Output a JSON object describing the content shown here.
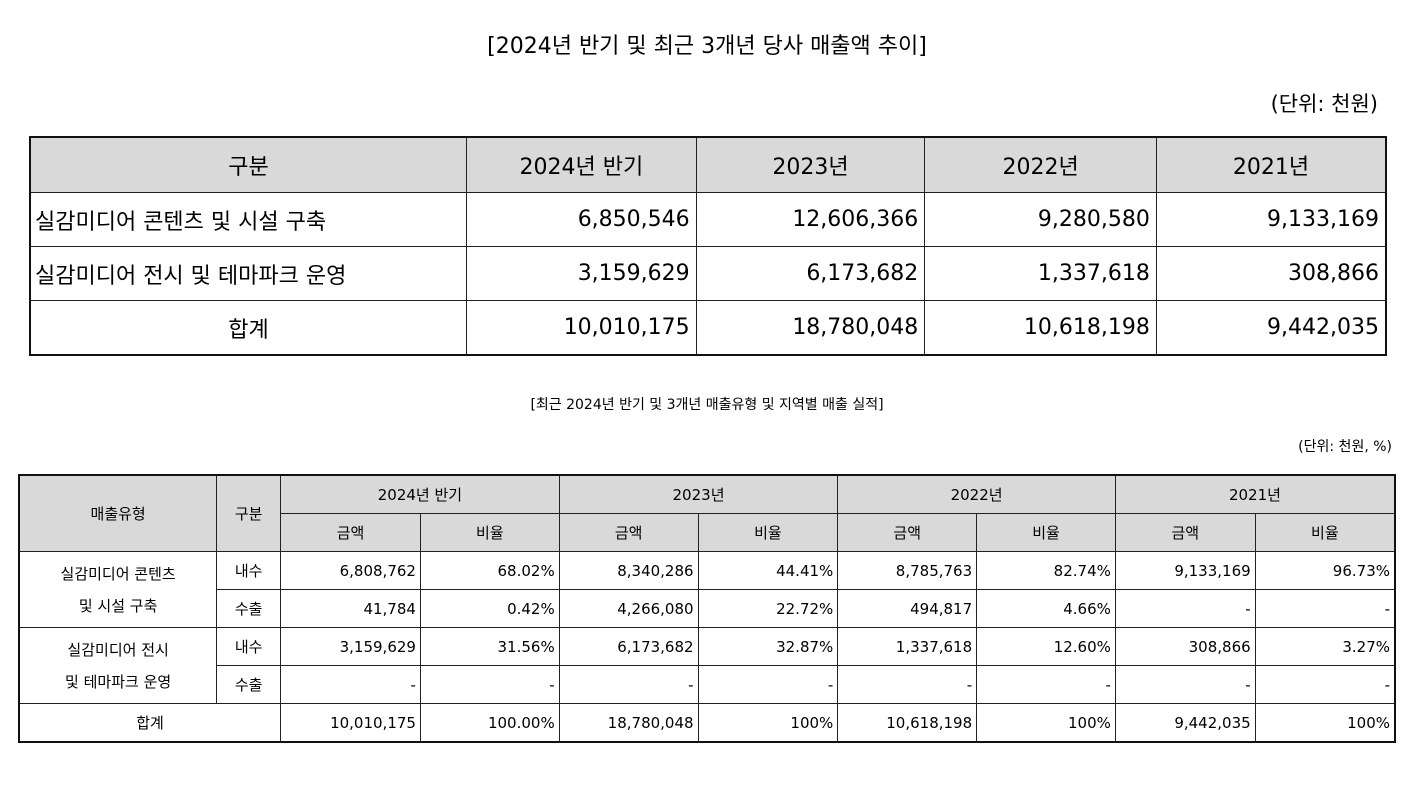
{
  "title1": "[2024년 반기 및 최근 3개년 당사 매출액 추이]",
  "unit1": "(단위: 천원)",
  "table1": {
    "headers": [
      "구분",
      "2024년 반기",
      "2023년",
      "2022년",
      "2021년"
    ],
    "rows": [
      {
        "label": "실감미디어 콘텐츠 및 시설 구축",
        "values": [
          "6,850,546",
          "12,606,366",
          "9,280,580",
          "9,133,169"
        ]
      },
      {
        "label": "실감미디어 전시 및 테마파크 운영",
        "values": [
          "3,159,629",
          "6,173,682",
          "1,337,618",
          "308,866"
        ]
      },
      {
        "label": "합계",
        "values": [
          "10,010,175",
          "18,780,048",
          "10,618,198",
          "9,442,035"
        ]
      }
    ]
  },
  "title2": "[최근 2024년 반기 및 3개년 매출유형 및 지역별 매출 실적]",
  "unit2": "(단위: 천원, %)",
  "table2": {
    "h_type": "매출유형",
    "h_div": "구분",
    "years": [
      "2024년 반기",
      "2023년",
      "2022년",
      "2021년"
    ],
    "sub_amount": "금액",
    "sub_ratio": "비율",
    "groups": [
      {
        "name_line1": "실감미디어 콘텐츠",
        "name_line2": "및 시설 구축",
        "rows": [
          {
            "div": "내수",
            "values": [
              "6,808,762",
              "68.02%",
              "8,340,286",
              "44.41%",
              "8,785,763",
              "82.74%",
              "9,133,169",
              "96.73%"
            ]
          },
          {
            "div": "수출",
            "values": [
              "41,784",
              "0.42%",
              "4,266,080",
              "22.72%",
              "494,817",
              "4.66%",
              "-",
              "-"
            ]
          }
        ]
      },
      {
        "name_line1": "실감미디어 전시",
        "name_line2": "및 테마파크 운영",
        "rows": [
          {
            "div": "내수",
            "values": [
              "3,159,629",
              "31.56%",
              "6,173,682",
              "32.87%",
              "1,337,618",
              "12.60%",
              "308,866",
              "3.27%"
            ]
          },
          {
            "div": "수출",
            "values": [
              "-",
              "-",
              "-",
              "-",
              "-",
              "-",
              "-",
              "-"
            ]
          }
        ]
      }
    ],
    "total": {
      "label": "합계",
      "values": [
        "10,010,175",
        "100.00%",
        "18,780,048",
        "100%",
        "10,618,198",
        "100%",
        "9,442,035",
        "100%"
      ]
    }
  }
}
